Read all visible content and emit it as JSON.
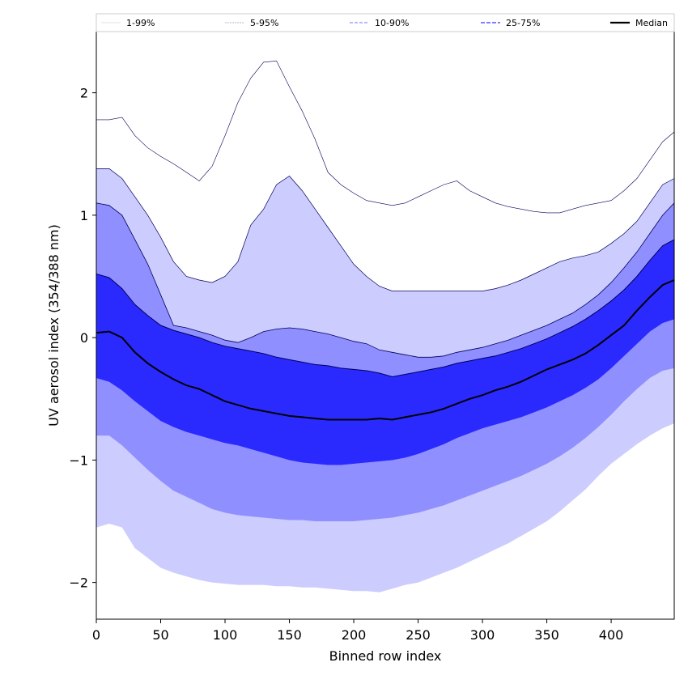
{
  "chart_data": {
    "type": "area",
    "title": "",
    "xlabel": "Binned row index",
    "ylabel": "UV aerosol index (354/388 nm)",
    "xlim": [
      0,
      449
    ],
    "ylim": [
      -2.3,
      2.5
    ],
    "xticks": [
      0,
      50,
      100,
      150,
      200,
      250,
      300,
      350,
      400
    ],
    "yticks": [
      -2,
      -1,
      0,
      1,
      2
    ],
    "ytick_labels": [
      "−2",
      "−1",
      "0",
      "1",
      "2"
    ],
    "legend": {
      "placement": "top, spanning full width",
      "entries": [
        "1-99%",
        "5-95%",
        "10-90%",
        "25-75%",
        "Median"
      ]
    },
    "colors": {
      "band_1_99": "#ffffff",
      "band_5_95": "#ccccff",
      "band_10_90": "#8f8fff",
      "band_25_75": "#5555ff",
      "band_inner": "#2a2aff",
      "median": "#000000",
      "edge_dark": "#00005a"
    },
    "x": [
      0,
      10,
      20,
      30,
      40,
      50,
      60,
      70,
      80,
      90,
      100,
      110,
      120,
      130,
      140,
      150,
      160,
      170,
      180,
      190,
      200,
      210,
      220,
      230,
      240,
      250,
      260,
      270,
      280,
      290,
      300,
      310,
      320,
      330,
      340,
      350,
      360,
      370,
      380,
      390,
      400,
      410,
      420,
      430,
      440,
      449
    ],
    "series": [
      {
        "name": "5%",
        "values": [
          -1.55,
          -1.52,
          -1.55,
          -1.72,
          -1.8,
          -1.88,
          -1.92,
          -1.95,
          -1.98,
          -2.0,
          -2.01,
          -2.02,
          -2.02,
          -2.02,
          -2.03,
          -2.03,
          -2.04,
          -2.04,
          -2.05,
          -2.06,
          -2.07,
          -2.07,
          -2.08,
          -2.05,
          -2.02,
          -2.0,
          -1.96,
          -1.92,
          -1.88,
          -1.83,
          -1.78,
          -1.73,
          -1.68,
          -1.62,
          -1.56,
          -1.5,
          -1.42,
          -1.33,
          -1.24,
          -1.13,
          -1.03,
          -0.95,
          -0.87,
          -0.8,
          -0.74,
          -0.7
        ]
      },
      {
        "name": "10%",
        "values": [
          -0.8,
          -0.8,
          -0.88,
          -0.98,
          -1.08,
          -1.17,
          -1.25,
          -1.3,
          -1.35,
          -1.4,
          -1.43,
          -1.45,
          -1.46,
          -1.47,
          -1.48,
          -1.49,
          -1.49,
          -1.5,
          -1.5,
          -1.5,
          -1.5,
          -1.49,
          -1.48,
          -1.47,
          -1.45,
          -1.43,
          -1.4,
          -1.37,
          -1.33,
          -1.29,
          -1.25,
          -1.21,
          -1.17,
          -1.13,
          -1.08,
          -1.03,
          -0.97,
          -0.9,
          -0.82,
          -0.73,
          -0.63,
          -0.52,
          -0.42,
          -0.33,
          -0.27,
          -0.25
        ]
      },
      {
        "name": "25%",
        "values": [
          -0.33,
          -0.36,
          -0.43,
          -0.52,
          -0.6,
          -0.68,
          -0.73,
          -0.77,
          -0.8,
          -0.83,
          -0.86,
          -0.88,
          -0.91,
          -0.94,
          -0.97,
          -1.0,
          -1.02,
          -1.03,
          -1.04,
          -1.04,
          -1.03,
          -1.02,
          -1.01,
          -1.0,
          -0.98,
          -0.95,
          -0.91,
          -0.87,
          -0.82,
          -0.78,
          -0.74,
          -0.71,
          -0.68,
          -0.65,
          -0.61,
          -0.57,
          -0.52,
          -0.47,
          -0.41,
          -0.34,
          -0.25,
          -0.15,
          -0.05,
          0.05,
          0.12,
          0.15
        ]
      },
      {
        "name": "Median",
        "values": [
          0.04,
          0.05,
          0.0,
          -0.12,
          -0.21,
          -0.28,
          -0.34,
          -0.39,
          -0.42,
          -0.47,
          -0.52,
          -0.55,
          -0.58,
          -0.6,
          -0.62,
          -0.64,
          -0.65,
          -0.66,
          -0.67,
          -0.67,
          -0.67,
          -0.67,
          -0.66,
          -0.67,
          -0.65,
          -0.63,
          -0.61,
          -0.58,
          -0.54,
          -0.5,
          -0.47,
          -0.43,
          -0.4,
          -0.36,
          -0.31,
          -0.26,
          -0.22,
          -0.18,
          -0.13,
          -0.06,
          0.02,
          0.1,
          0.22,
          0.33,
          0.43,
          0.47
        ]
      },
      {
        "name": "75%",
        "values": [
          0.52,
          0.49,
          0.4,
          0.27,
          0.18,
          0.1,
          0.06,
          0.03,
          0.0,
          -0.04,
          -0.07,
          -0.09,
          -0.11,
          -0.13,
          -0.16,
          -0.18,
          -0.2,
          -0.22,
          -0.23,
          -0.25,
          -0.26,
          -0.27,
          -0.29,
          -0.32,
          -0.3,
          -0.28,
          -0.26,
          -0.24,
          -0.21,
          -0.19,
          -0.17,
          -0.15,
          -0.12,
          -0.09,
          -0.05,
          -0.01,
          0.04,
          0.09,
          0.15,
          0.22,
          0.3,
          0.39,
          0.5,
          0.63,
          0.75,
          0.8
        ]
      },
      {
        "name": "90%",
        "values": [
          1.1,
          1.08,
          1.0,
          0.8,
          0.6,
          0.35,
          0.1,
          0.08,
          0.05,
          0.02,
          -0.02,
          -0.04,
          0.0,
          0.05,
          0.07,
          0.08,
          0.07,
          0.05,
          0.03,
          0.0,
          -0.03,
          -0.05,
          -0.1,
          -0.12,
          -0.14,
          -0.16,
          -0.16,
          -0.15,
          -0.12,
          -0.1,
          -0.08,
          -0.05,
          -0.02,
          0.02,
          0.06,
          0.1,
          0.15,
          0.2,
          0.27,
          0.35,
          0.45,
          0.57,
          0.7,
          0.85,
          1.0,
          1.1
        ]
      },
      {
        "name": "95%",
        "values": [
          1.38,
          1.38,
          1.3,
          1.15,
          1.0,
          0.82,
          0.62,
          0.5,
          0.47,
          0.45,
          0.5,
          0.62,
          0.92,
          1.05,
          1.25,
          1.32,
          1.2,
          1.05,
          0.9,
          0.75,
          0.6,
          0.5,
          0.42,
          0.38,
          0.38,
          0.38,
          0.38,
          0.38,
          0.38,
          0.38,
          0.38,
          0.4,
          0.43,
          0.47,
          0.52,
          0.57,
          0.62,
          0.65,
          0.67,
          0.7,
          0.77,
          0.85,
          0.95,
          1.1,
          1.25,
          1.3
        ]
      },
      {
        "name": "99%",
        "values": [
          1.78,
          1.78,
          1.8,
          1.65,
          1.55,
          1.48,
          1.42,
          1.35,
          1.28,
          1.4,
          1.65,
          1.92,
          2.12,
          2.25,
          2.26,
          2.05,
          1.85,
          1.62,
          1.35,
          1.25,
          1.18,
          1.12,
          1.1,
          1.08,
          1.1,
          1.15,
          1.2,
          1.25,
          1.28,
          1.2,
          1.15,
          1.1,
          1.07,
          1.05,
          1.03,
          1.02,
          1.02,
          1.05,
          1.08,
          1.1,
          1.12,
          1.2,
          1.3,
          1.45,
          1.6,
          1.68
        ]
      }
    ]
  }
}
